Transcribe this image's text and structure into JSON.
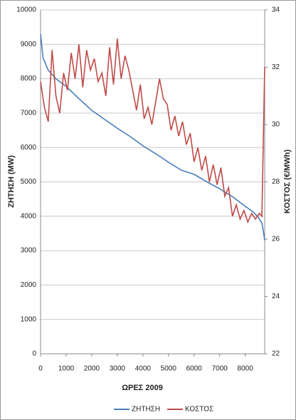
{
  "chart_data": {
    "type": "line",
    "xlabel": "ΩΡΕΣ 2009",
    "ylabel": "ΖΗΤΗΣΗ (MW)",
    "y2label": "ΚΟΣΤΟΣ (€/MWh)",
    "xlim": [
      0,
      8760
    ],
    "xticks": [
      0,
      1000,
      2000,
      3000,
      4000,
      5000,
      6000,
      7000,
      8000
    ],
    "ylim": [
      0,
      10000
    ],
    "yticks": [
      0,
      1000,
      2000,
      3000,
      4000,
      5000,
      6000,
      7000,
      8000,
      9000,
      10000
    ],
    "y2lim": [
      22,
      34
    ],
    "y2ticks": [
      22,
      24,
      26,
      28,
      30,
      32,
      34
    ],
    "grid": true,
    "legend": "bottom",
    "series": [
      {
        "name": "ΖΗΤΗΣΗ",
        "color": "#4a7ebb",
        "x": [
          0,
          100,
          300,
          600,
          1000,
          1500,
          2000,
          2500,
          3000,
          3500,
          4000,
          4500,
          5000,
          5500,
          6000,
          6500,
          7000,
          7500,
          8000,
          8300,
          8500,
          8650,
          8700,
          8760
        ],
        "values": [
          9300,
          8600,
          8250,
          8000,
          7780,
          7420,
          7080,
          6820,
          6560,
          6320,
          6050,
          5820,
          5570,
          5340,
          5220,
          5000,
          4800,
          4570,
          4290,
          4130,
          3980,
          3800,
          3600,
          3300
        ]
      },
      {
        "name": "ΚΟΣΤΟΣ",
        "color": "#be4b48",
        "axis": "y2",
        "x": [
          0,
          150,
          300,
          450,
          600,
          750,
          900,
          1050,
          1200,
          1350,
          1500,
          1650,
          1800,
          1950,
          2100,
          2250,
          2400,
          2550,
          2700,
          2850,
          3000,
          3150,
          3300,
          3450,
          3600,
          3750,
          3900,
          4050,
          4200,
          4350,
          4500,
          4650,
          4800,
          4950,
          5100,
          5250,
          5400,
          5550,
          5700,
          5850,
          6000,
          6150,
          6300,
          6450,
          6600,
          6750,
          6900,
          7050,
          7200,
          7350,
          7500,
          7650,
          7800,
          7950,
          8100,
          8250,
          8400,
          8550,
          8650,
          8760
        ],
        "values": [
          31.5,
          30.6,
          30.1,
          32.6,
          31.0,
          30.4,
          31.8,
          31.2,
          32.5,
          31.6,
          32.8,
          31.3,
          32.6,
          31.9,
          32.3,
          31.5,
          31.8,
          31.0,
          32.7,
          31.4,
          33.0,
          31.6,
          32.4,
          31.9,
          31.2,
          30.5,
          31.4,
          30.2,
          30.6,
          30.0,
          30.8,
          31.6,
          30.9,
          30.7,
          29.8,
          30.3,
          29.6,
          30.1,
          29.3,
          29.7,
          28.7,
          29.2,
          28.4,
          28.9,
          28.0,
          28.6,
          27.9,
          28.5,
          27.5,
          27.8,
          26.8,
          27.2,
          26.7,
          27.0,
          26.6,
          26.9,
          26.7,
          26.9,
          26.8,
          32.0
        ]
      }
    ]
  }
}
